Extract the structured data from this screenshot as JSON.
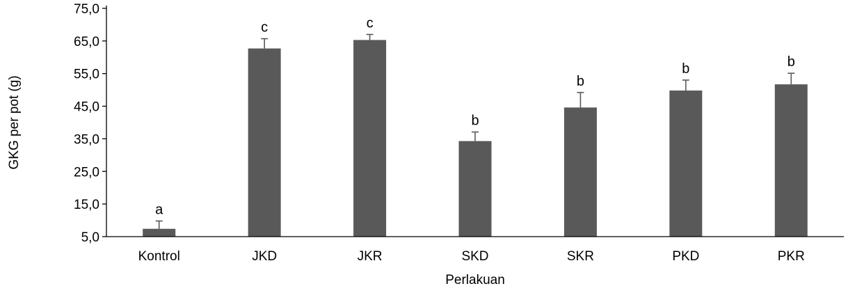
{
  "chart_data": {
    "type": "bar",
    "title": "",
    "xlabel": "Perlakuan",
    "ylabel": "GKG per pot (g)",
    "categories": [
      "Kontrol",
      "JKD",
      "JKR",
      "SKD",
      "SKR",
      "PKD",
      "PKR"
    ],
    "values": [
      7.4,
      62.7,
      65.3,
      34.3,
      44.6,
      49.8,
      51.7
    ],
    "error_plus": [
      2.4,
      3.0,
      1.7,
      2.8,
      4.6,
      3.2,
      3.4
    ],
    "significance": [
      "a",
      "c",
      "c",
      "b",
      "b",
      "b",
      "b"
    ],
    "ylim": [
      5,
      75
    ],
    "yticks": [
      "5,0",
      "15,0",
      "25,0",
      "35,0",
      "45,0",
      "55,0",
      "65,0",
      "75,0"
    ],
    "ytick_values": [
      5,
      15,
      25,
      35,
      45,
      55,
      65,
      75
    ],
    "grid": false,
    "bar_color": "#595959"
  }
}
